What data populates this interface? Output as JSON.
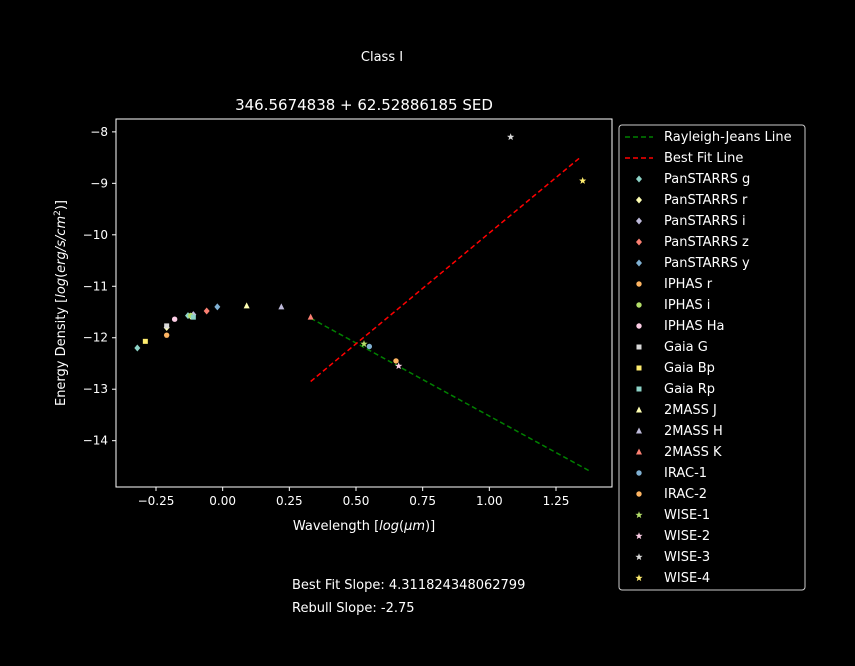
{
  "suptitle": "Class I",
  "footer": {
    "best_fit": "Best Fit Slope: 4.311824348062799",
    "rebull": "Rebull Slope: -2.75"
  },
  "chart_data": {
    "type": "scatter",
    "title": "346.5674838 + 62.52886185 SED",
    "xlabel": "Wavelength [log(μm)]",
    "ylabel": "Energy Density [log(erg/s/cm²)]",
    "xlim": [
      -0.4,
      1.46
    ],
    "ylim": [
      -14.9,
      -7.75
    ],
    "xticks": [
      -0.25,
      0.0,
      0.25,
      0.5,
      0.75,
      1.0,
      1.25
    ],
    "xtick_labels": [
      "−0.25",
      "0.00",
      "0.25",
      "0.50",
      "0.75",
      "1.00",
      "1.25"
    ],
    "yticks": [
      -8,
      -9,
      -10,
      -11,
      -12,
      -13,
      -14
    ],
    "ytick_labels": [
      "−8",
      "−9",
      "−10",
      "−11",
      "−12",
      "−13",
      "−14"
    ],
    "grid": false,
    "legend_position": "outside-right",
    "lines": [
      {
        "name": "Rayleigh-Jeans Line",
        "color": "#008000",
        "dash": "dashed",
        "x": [
          0.33,
          1.38
        ],
        "y": [
          -11.62,
          -14.6
        ]
      },
      {
        "name": "Best Fit Line",
        "color": "#ff0000",
        "dash": "dashed",
        "x": [
          0.33,
          1.34
        ],
        "y": [
          -12.85,
          -8.5
        ]
      }
    ],
    "series": [
      {
        "name": "PanSTARRS g",
        "marker": "diamond",
        "color": "#8dd3c7",
        "points": [
          [
            -0.32,
            -12.2
          ],
          [
            -0.13,
            -11.57
          ]
        ]
      },
      {
        "name": "PanSTARRS r",
        "marker": "diamond",
        "color": "#ffffb3",
        "points": [
          [
            -0.21,
            -11.8
          ],
          [
            -0.12,
            -11.58
          ]
        ]
      },
      {
        "name": "PanSTARRS i",
        "marker": "diamond",
        "color": "#bebada",
        "points": [
          [
            -0.11,
            -11.55
          ]
        ]
      },
      {
        "name": "PanSTARRS z",
        "marker": "diamond",
        "color": "#fb8072",
        "points": [
          [
            -0.06,
            -11.48
          ]
        ]
      },
      {
        "name": "PanSTARRS y",
        "marker": "diamond",
        "color": "#80b1d3",
        "points": [
          [
            -0.02,
            -11.4
          ]
        ]
      },
      {
        "name": "IPHAS r",
        "marker": "circle",
        "color": "#fdb462",
        "points": [
          [
            -0.21,
            -11.95
          ]
        ]
      },
      {
        "name": "IPHAS i",
        "marker": "circle",
        "color": "#b3de69",
        "points": [
          [
            -0.12,
            -11.57
          ]
        ]
      },
      {
        "name": "IPHAS Ha",
        "marker": "circle",
        "color": "#fccde5",
        "points": [
          [
            -0.18,
            -11.64
          ]
        ]
      },
      {
        "name": "Gaia G",
        "marker": "square",
        "color": "#d9d9d9",
        "points": [
          [
            -0.21,
            -11.77
          ]
        ]
      },
      {
        "name": "Gaia Bp",
        "marker": "square",
        "color": "#ffed6f",
        "points": [
          [
            -0.29,
            -12.07
          ]
        ]
      },
      {
        "name": "Gaia Rp",
        "marker": "square",
        "color": "#8dd3c7",
        "points": [
          [
            -0.11,
            -11.6
          ]
        ]
      },
      {
        "name": "2MASS J",
        "marker": "triangle",
        "color": "#ffffb3",
        "points": [
          [
            0.09,
            -11.38
          ]
        ]
      },
      {
        "name": "2MASS H",
        "marker": "triangle",
        "color": "#bebada",
        "points": [
          [
            0.22,
            -11.4
          ]
        ]
      },
      {
        "name": "2MASS K",
        "marker": "triangle",
        "color": "#fb8072",
        "points": [
          [
            0.33,
            -11.6
          ]
        ]
      },
      {
        "name": "IRAC-1",
        "marker": "circle",
        "color": "#80b1d3",
        "points": [
          [
            0.55,
            -12.17
          ]
        ]
      },
      {
        "name": "IRAC-2",
        "marker": "circle",
        "color": "#fdb462",
        "points": [
          [
            0.65,
            -12.45
          ]
        ]
      },
      {
        "name": "WISE-1",
        "marker": "star",
        "color": "#b3de69",
        "points": [
          [
            0.53,
            -12.12
          ]
        ]
      },
      {
        "name": "WISE-2",
        "marker": "star",
        "color": "#fccde5",
        "points": [
          [
            0.66,
            -12.55
          ]
        ]
      },
      {
        "name": "WISE-3",
        "marker": "star",
        "color": "#d9d9d9",
        "points": [
          [
            1.08,
            -8.1
          ]
        ]
      },
      {
        "name": "WISE-4",
        "marker": "star",
        "color": "#ffed6f",
        "points": [
          [
            1.35,
            -8.95
          ]
        ]
      }
    ]
  }
}
